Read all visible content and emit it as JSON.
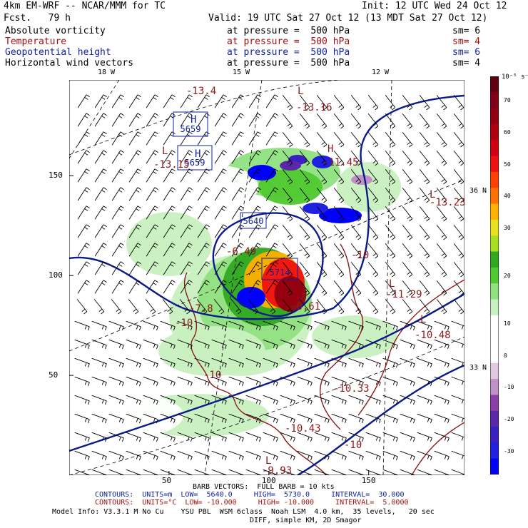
{
  "header": {
    "model": "4km EM-WRF -- NCAR/MMM for TC",
    "init": "Init: 12 UTC Wed 24 Oct 12",
    "fcst": "Fcst.   79 h",
    "valid": "Valid: 19 UTC Sat 27 Oct 12 (13 MDT Sat 27 Oct 12)"
  },
  "fields": [
    {
      "name": "Absolute vorticity",
      "at": "at pressure =  500 hPa",
      "sm": "sm= 6",
      "color": "#000000"
    },
    {
      "name": "Temperature",
      "at": "at pressure =  500 hPa",
      "sm": "sm= 4",
      "color": "#a01010"
    },
    {
      "name": "Geopotential height",
      "at": "at pressure =  500 hPa",
      "sm": "sm= 6",
      "color": "#1020a0"
    },
    {
      "name": "Horizontal wind vectors",
      "at": "at pressure =  500 hPa",
      "sm": "sm= 4",
      "color": "#000000"
    }
  ],
  "lon_labels": [
    "18 W",
    "15 W",
    "12 W"
  ],
  "lat_labels": [
    "36 N",
    "33 N"
  ],
  "footer": {
    "barb": "BARB VECTORS:  FULL BARB = 10 kts",
    "contours_z": "CONTOURS:  UNITS=m  LOW=  5640.0     HIGH=  5730.0     INTERVAL=  30.000",
    "contours_t": "CONTOURS:  UNITS=°C  LOW= -10.000     HIGH= -10.000     INTERVAL=  5.0000",
    "model_info": "Model Info: V3.3.1 M No Cu    YSU PBL  WSM 6class  Noah LSM  4.0 km,  35 levels,   20 sec",
    "diff": "DIFF, simple KM, 2D Smagor"
  },
  "chart_data": {
    "type": "heatmap",
    "title": "Absolute vorticity at pressure = 500 hPa",
    "colorbar": {
      "units": "10⁻⁵ s⁻¹",
      "tick_labels": [
        "70",
        "60",
        "50",
        "40",
        "30",
        "20",
        "10",
        "0",
        "-10",
        "-20",
        "-30"
      ],
      "levels": [
        {
          "value": -35,
          "color": "#0000ff"
        },
        {
          "value": -30,
          "color": "#2020e0"
        },
        {
          "value": -25,
          "color": "#3a20c0"
        },
        {
          "value": -20,
          "color": "#5a28a8"
        },
        {
          "value": -15,
          "color": "#8a40a8"
        },
        {
          "value": -10,
          "color": "#c090c8"
        },
        {
          "value": -5,
          "color": "#e0c8e0"
        },
        {
          "value": 0,
          "color": "#ffffff"
        },
        {
          "value": 5,
          "color": "#ffffff"
        },
        {
          "value": 10,
          "color": "#ffffff"
        },
        {
          "value": 12,
          "color": "#c8f0c0"
        },
        {
          "value": 15,
          "color": "#90e080"
        },
        {
          "value": 20,
          "color": "#50c830"
        },
        {
          "value": 25,
          "color": "#30a820"
        },
        {
          "value": 28,
          "color": "#a8e020"
        },
        {
          "value": 30,
          "color": "#e8e020"
        },
        {
          "value": 35,
          "color": "#ffb000"
        },
        {
          "value": 40,
          "color": "#ff7000"
        },
        {
          "value": 45,
          "color": "#ff4000"
        },
        {
          "value": 50,
          "color": "#f01010"
        },
        {
          "value": 55,
          "color": "#d00010"
        },
        {
          "value": 60,
          "color": "#b00010"
        },
        {
          "value": 65,
          "color": "#900010"
        },
        {
          "value": 70,
          "color": "#800018"
        },
        {
          "value": 75,
          "color": "#600010"
        }
      ]
    },
    "x_ticks": [
      50,
      100,
      150
    ],
    "y_ticks": [
      50,
      100,
      150
    ],
    "xlim": [
      0,
      198
    ],
    "ylim": [
      0,
      198
    ],
    "height_labels": [
      "5659",
      "5659",
      "5640",
      "5714"
    ],
    "high_low_markers": [
      "H",
      "H",
      "L",
      "L",
      "L",
      "L",
      "L",
      "L",
      "H"
    ],
    "temperature_labels": [
      "-13.4",
      "-13.16",
      "-13.15",
      "-11.45",
      "-13.23",
      "-6.49",
      "-10",
      "-7.8",
      "-6.61",
      "-10",
      "-11.29",
      "-10.48",
      "-10",
      "-10.33",
      "-10.43",
      "-10",
      "-9.93"
    ]
  }
}
